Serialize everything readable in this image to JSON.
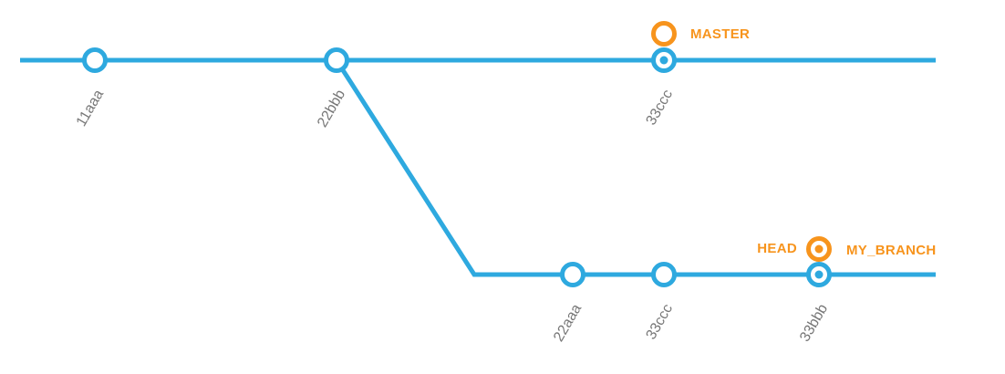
{
  "colors": {
    "branch_line": "#2ea9df",
    "commit_fill": "#ffffff",
    "ref_marker": "#f7941d",
    "commit_text": "#777777",
    "background": "#ffffff"
  },
  "branches": {
    "master": {
      "commits": [
        {
          "id": "11aaa"
        },
        {
          "id": "22bbb"
        },
        {
          "id": "33ccc",
          "ref_label": "MASTER"
        }
      ]
    },
    "my_branch": {
      "forks_from": "22bbb",
      "commits": [
        {
          "id": "22aaa"
        },
        {
          "id": "33ccc"
        },
        {
          "id": "33bbb",
          "ref_label": "MY_BRANCH",
          "head_label": "HEAD"
        }
      ]
    }
  }
}
